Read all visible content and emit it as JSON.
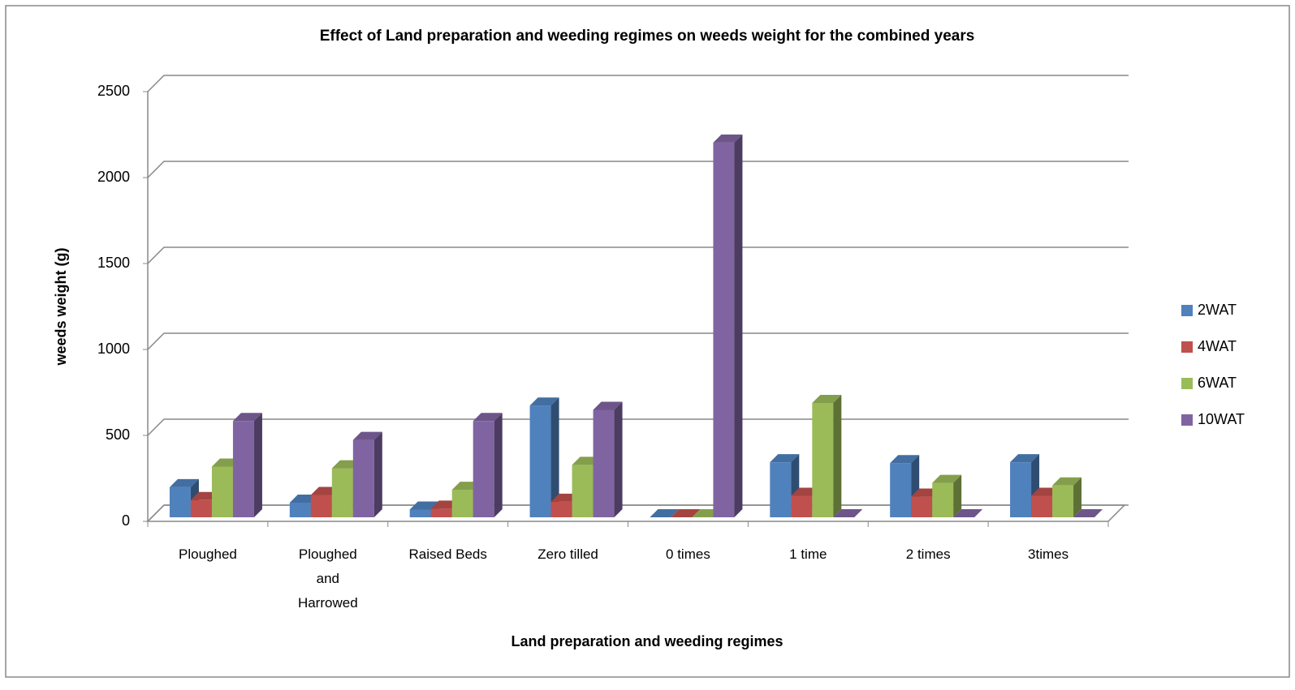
{
  "chart_data": {
    "type": "bar3d",
    "title": "Effect of Land preparation and weeding regimes on weeds weight for the combined years",
    "x_label": "Land preparation and weeding regimes",
    "y_label": "weeds weight (g)",
    "categories": [
      "Ploughed",
      "Ploughed and Harrowed",
      "Raised Beds",
      "Zero tilled",
      "0 times",
      "1 time",
      "2 times",
      "3times"
    ],
    "series": [
      {
        "name": "2WAT",
        "color": "#4f81bd",
        "values": [
          175,
          85,
          45,
          650,
          0,
          320,
          315,
          320
        ]
      },
      {
        "name": "4WAT",
        "color": "#c0504d",
        "values": [
          100,
          130,
          50,
          90,
          0,
          125,
          120,
          125
        ]
      },
      {
        "name": "6WAT",
        "color": "#9bbb59",
        "values": [
          295,
          285,
          160,
          305,
          0,
          665,
          200,
          185
        ]
      },
      {
        "name": "10WAT",
        "color": "#8064a2",
        "values": [
          560,
          450,
          560,
          625,
          2180,
          0,
          0,
          0
        ]
      }
    ],
    "ylim": [
      0,
      2500
    ],
    "yticks": [
      0,
      500,
      1000,
      1500,
      2000,
      2500
    ],
    "grid": true,
    "legend": "right"
  }
}
